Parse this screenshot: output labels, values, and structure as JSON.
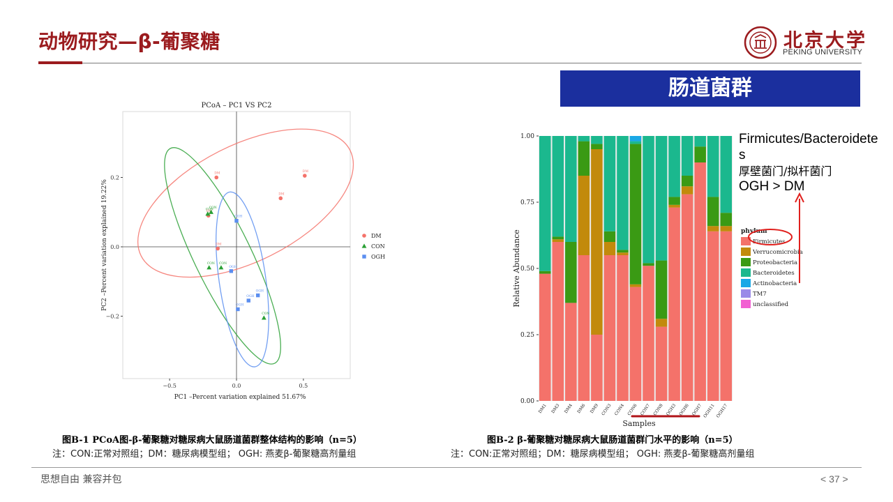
{
  "header": {
    "title": "动物研究—β-葡聚糖",
    "logo_text": "北京大学",
    "logo_sub": "PEKING UNIVERSITY"
  },
  "banner": "肠道菌群",
  "colors": {
    "accent": "#9b1b1e",
    "banner": "#1b2f9e",
    "dm": "#f4726a",
    "con": "#2aa035",
    "ogh": "#5b8ef0"
  },
  "note": {
    "line1": "Firmicutes/Bacteroidete",
    "line2": "s",
    "line3": "厚壁菌门/拟杆菌门",
    "line4": "OGH > DM"
  },
  "captions": {
    "left_title": "图B-1 PCoA图-β-葡聚糖对糖尿病大鼠肠道菌群整体结构的影响（n=5）",
    "left_note": "注：CON:正常对照组；DM：糖尿病模型组； OGH: 燕麦β-葡聚糖高剂量组",
    "right_title": "图B-2 β-葡聚糖对糖尿病大鼠肠道菌群门水平的影响（n=5）",
    "right_note": "注：CON:正常对照组；DM：糖尿病模型组； OGH: 燕麦β-葡聚糖高剂量组"
  },
  "footer": {
    "left": "思想自由 兼容并包",
    "page": "< 37 >"
  },
  "chart_data": [
    {
      "type": "scatter",
      "title": "PCoA – PC1 VS PC2",
      "xlabel": "PC1 –Percent variation explained 51.67%",
      "ylabel": "PC2 –Percent variation explained 19.22%",
      "xlim": [
        -0.85,
        0.85
      ],
      "ylim": [
        -0.38,
        0.39
      ],
      "xticks": [
        -0.5,
        0,
        0.5
      ],
      "xtick_labels": [
        "−0.5",
        "0.0",
        "0.5"
      ],
      "yticks": [
        -0.2,
        0,
        0.2
      ],
      "ytick_labels": [
        "−0.2",
        "0.0",
        "0.2"
      ],
      "grid": false,
      "legend_position": "right",
      "series": [
        {
          "name": "DM",
          "color": "#f4726a",
          "marker": "circle",
          "points": [
            {
              "label": "DM",
              "x": -0.15,
              "y": 0.2
            },
            {
              "label": "DM",
              "x": 0.51,
              "y": 0.205
            },
            {
              "label": "DM",
              "x": 0.33,
              "y": 0.14
            },
            {
              "label": "DM",
              "x": -0.21,
              "y": 0.09
            },
            {
              "label": "DM",
              "x": -0.14,
              "y": -0.005
            }
          ]
        },
        {
          "name": "CON",
          "color": "#2aa035",
          "marker": "triangle",
          "points": [
            {
              "label": "CON",
              "x": -0.19,
              "y": 0.1
            },
            {
              "label": "CON",
              "x": -0.215,
              "y": 0.095
            },
            {
              "label": "CON",
              "x": -0.205,
              "y": -0.06
            },
            {
              "label": "CON",
              "x": -0.115,
              "y": -0.06
            },
            {
              "label": "CON",
              "x": 0.205,
              "y": -0.205
            }
          ]
        },
        {
          "name": "OGH",
          "color": "#5b8ef0",
          "marker": "square",
          "points": [
            {
              "label": "OGH",
              "x": 0.0,
              "y": 0.075
            },
            {
              "label": "OGH",
              "x": -0.04,
              "y": -0.07
            },
            {
              "label": "OGH",
              "x": 0.16,
              "y": -0.14
            },
            {
              "label": "OGH",
              "x": 0.09,
              "y": -0.155
            },
            {
              "label": "OGH",
              "x": 0.01,
              "y": -0.18
            }
          ]
        }
      ],
      "ellipses": [
        {
          "group": "DM",
          "color": "#f4726a"
        },
        {
          "group": "CON",
          "color": "#2aa035"
        },
        {
          "group": "OGH",
          "color": "#5b8ef0"
        }
      ]
    },
    {
      "type": "bar",
      "stacked": true,
      "xlabel": "Samples",
      "ylabel": "Relative Abundance",
      "ylim": [
        0,
        1
      ],
      "yticks": [
        "0.00",
        "0.25",
        "0.50",
        "0.75",
        "1.00"
      ],
      "legend_title": "phylum",
      "legend_position": "right",
      "categories": [
        "DM1",
        "DM3",
        "DM4",
        "DM6",
        "DM9",
        "CON3",
        "CON4",
        "CON6",
        "CON7",
        "CON8",
        "OGH3",
        "OGH6",
        "OGH7",
        "OGH11",
        "OGH17"
      ],
      "series": [
        {
          "name": "Firmicutes",
          "color": "#f4726a",
          "values": [
            0.48,
            0.6,
            0.37,
            0.55,
            0.25,
            0.55,
            0.55,
            0.43,
            0.51,
            0.28,
            0.73,
            0.78,
            0.9,
            0.64,
            0.64
          ]
        },
        {
          "name": "Verrucomicrobia",
          "color": "#c28a0c",
          "values": [
            0.0,
            0.01,
            0.0,
            0.3,
            0.7,
            0.05,
            0.01,
            0.01,
            0.0,
            0.03,
            0.01,
            0.03,
            0.0,
            0.02,
            0.02
          ]
        },
        {
          "name": "Proteobacteria",
          "color": "#3a9a14",
          "values": [
            0.01,
            0.01,
            0.23,
            0.13,
            0.02,
            0.04,
            0.01,
            0.53,
            0.01,
            0.22,
            0.03,
            0.04,
            0.06,
            0.11,
            0.05
          ]
        },
        {
          "name": "Bacteroidetes",
          "color": "#1bb88e",
          "values": [
            0.51,
            0.38,
            0.4,
            0.02,
            0.03,
            0.36,
            0.43,
            0.01,
            0.48,
            0.47,
            0.23,
            0.15,
            0.04,
            0.23,
            0.29
          ]
        },
        {
          "name": "Actinobacteria",
          "color": "#1aa8e6",
          "values": [
            0.0,
            0.0,
            0.0,
            0.0,
            0.0,
            0.0,
            0.0,
            0.02,
            0.0,
            0.0,
            0.0,
            0.0,
            0.0,
            0.0,
            0.0
          ]
        },
        {
          "name": "TM7",
          "color": "#9a8ae8",
          "values": [
            0,
            0,
            0,
            0,
            0,
            0,
            0,
            0,
            0,
            0,
            0,
            0,
            0,
            0,
            0
          ]
        },
        {
          "name": "unclassified",
          "color": "#f25fd2",
          "values": [
            0,
            0,
            0,
            0,
            0,
            0,
            0,
            0,
            0,
            0,
            0,
            0,
            0,
            0,
            0
          ]
        }
      ]
    }
  ]
}
